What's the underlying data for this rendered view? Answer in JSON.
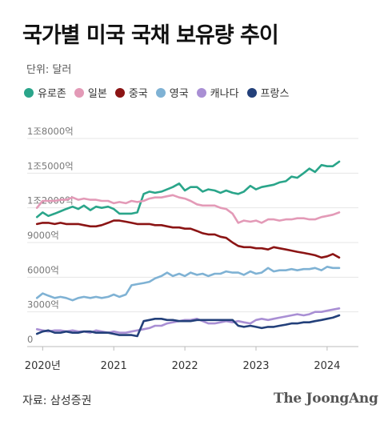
{
  "header": {
    "title": "국가별 미국 국채 보유량 추이",
    "unit": "단위: 달러"
  },
  "footer": {
    "source": "자료: 삼성증권",
    "brand": "The JoongAng"
  },
  "chart_data": {
    "type": "line",
    "title": "국가별 미국 국채 보유량 추이",
    "ylabel": "",
    "xlabel": "",
    "ylim": [
      0,
      18000
    ],
    "xlim": [
      2019.85,
      2024.35
    ],
    "y_ticks": [
      0,
      3000,
      6000,
      9000,
      12000,
      15000,
      18000
    ],
    "y_tick_labels": [
      "0",
      "3000억",
      "6000억",
      "9000억",
      "1조2000억",
      "1조5000억",
      "1조8000억"
    ],
    "x_ticks": [
      2020,
      2021,
      2022,
      2023,
      2024
    ],
    "x_tick_labels": [
      "2020년",
      "2021",
      "2022",
      "2023",
      "2024"
    ],
    "grid": "horizontal",
    "legend_position": "top",
    "series": [
      {
        "name": "유로존",
        "color": "#2aa58a",
        "x": [
          2019.92,
          2020.0,
          2020.08,
          2020.17,
          2020.25,
          2020.33,
          2020.42,
          2020.5,
          2020.58,
          2020.67,
          2020.75,
          2020.83,
          2020.92,
          2021.0,
          2021.08,
          2021.17,
          2021.25,
          2021.33,
          2021.42,
          2021.5,
          2021.58,
          2021.67,
          2021.75,
          2021.83,
          2021.92,
          2022.0,
          2022.08,
          2022.17,
          2022.25,
          2022.33,
          2022.42,
          2022.5,
          2022.58,
          2022.67,
          2022.75,
          2022.83,
          2022.92,
          2023.0,
          2023.08,
          2023.17,
          2023.25,
          2023.33,
          2023.42,
          2023.5,
          2023.58,
          2023.67,
          2023.75,
          2023.83,
          2023.92,
          2024.0,
          2024.08,
          2024.17
        ],
        "values": [
          11200,
          11600,
          11300,
          11500,
          11700,
          11900,
          12100,
          11900,
          12200,
          11800,
          12100,
          12000,
          12100,
          11900,
          11500,
          11500,
          11500,
          11600,
          13200,
          13400,
          13300,
          13400,
          13600,
          13800,
          14100,
          13500,
          13800,
          13800,
          13400,
          13600,
          13500,
          13300,
          13500,
          13300,
          13200,
          13400,
          13900,
          13600,
          13800,
          13900,
          14000,
          14200,
          14300,
          14700,
          14600,
          15000,
          15400,
          15100,
          15700,
          15600,
          15600,
          16000
        ]
      },
      {
        "name": "일본",
        "color": "#e39ab7",
        "x": [
          2019.92,
          2020.0,
          2020.08,
          2020.17,
          2020.25,
          2020.33,
          2020.42,
          2020.5,
          2020.58,
          2020.67,
          2020.75,
          2020.83,
          2020.92,
          2021.0,
          2021.08,
          2021.17,
          2021.25,
          2021.33,
          2021.42,
          2021.5,
          2021.58,
          2021.67,
          2021.75,
          2021.83,
          2021.92,
          2022.0,
          2022.08,
          2022.17,
          2022.25,
          2022.33,
          2022.42,
          2022.5,
          2022.58,
          2022.67,
          2022.75,
          2022.83,
          2022.92,
          2023.0,
          2023.08,
          2023.17,
          2023.25,
          2023.33,
          2023.42,
          2023.5,
          2023.58,
          2023.67,
          2023.75,
          2023.83,
          2023.92,
          2024.0,
          2024.08,
          2024.17
        ],
        "values": [
          12000,
          12600,
          12600,
          12600,
          12700,
          12700,
          12900,
          12700,
          12800,
          12700,
          12700,
          12600,
          12600,
          12400,
          12500,
          12400,
          12600,
          12500,
          12600,
          12800,
          12900,
          12900,
          13000,
          13100,
          12900,
          12800,
          12600,
          12300,
          12200,
          12200,
          12200,
          12000,
          11900,
          11500,
          10700,
          10900,
          10800,
          10900,
          10700,
          11000,
          11000,
          10900,
          11000,
          11000,
          11100,
          11100,
          11000,
          11000,
          11200,
          11300,
          11400,
          11600
        ]
      },
      {
        "name": "중국",
        "color": "#8b1414",
        "x": [
          2019.92,
          2020.0,
          2020.08,
          2020.17,
          2020.25,
          2020.33,
          2020.42,
          2020.5,
          2020.58,
          2020.67,
          2020.75,
          2020.83,
          2020.92,
          2021.0,
          2021.08,
          2021.17,
          2021.25,
          2021.33,
          2021.42,
          2021.5,
          2021.58,
          2021.67,
          2021.75,
          2021.83,
          2021.92,
          2022.0,
          2022.08,
          2022.17,
          2022.25,
          2022.33,
          2022.42,
          2022.5,
          2022.58,
          2022.67,
          2022.75,
          2022.83,
          2022.92,
          2023.0,
          2023.08,
          2023.17,
          2023.25,
          2023.33,
          2023.42,
          2023.5,
          2023.58,
          2023.67,
          2023.75,
          2023.83,
          2023.92,
          2024.0,
          2024.08,
          2024.17
        ],
        "values": [
          10600,
          10700,
          10700,
          10600,
          10700,
          10600,
          10600,
          10600,
          10500,
          10400,
          10400,
          10500,
          10700,
          10900,
          10900,
          10800,
          10700,
          10600,
          10600,
          10600,
          10500,
          10500,
          10400,
          10300,
          10300,
          10200,
          10200,
          10000,
          9800,
          9700,
          9700,
          9500,
          9400,
          9000,
          8700,
          8600,
          8600,
          8500,
          8500,
          8400,
          8600,
          8500,
          8400,
          8300,
          8200,
          8100,
          8000,
          7900,
          7700,
          7800,
          8000,
          7700
        ]
      },
      {
        "name": "영국",
        "color": "#7fb2d4",
        "x": [
          2019.92,
          2020.0,
          2020.08,
          2020.17,
          2020.25,
          2020.33,
          2020.42,
          2020.5,
          2020.58,
          2020.67,
          2020.75,
          2020.83,
          2020.92,
          2021.0,
          2021.08,
          2021.17,
          2021.25,
          2021.33,
          2021.42,
          2021.5,
          2021.58,
          2021.67,
          2021.75,
          2021.83,
          2021.92,
          2022.0,
          2022.08,
          2022.17,
          2022.25,
          2022.33,
          2022.42,
          2022.5,
          2022.58,
          2022.67,
          2022.75,
          2022.83,
          2022.92,
          2023.0,
          2023.08,
          2023.17,
          2023.25,
          2023.33,
          2023.42,
          2023.5,
          2023.58,
          2023.67,
          2023.75,
          2023.83,
          2023.92,
          2024.0,
          2024.08,
          2024.17
        ],
        "values": [
          4200,
          4600,
          4400,
          4200,
          4300,
          4200,
          4000,
          4200,
          4300,
          4200,
          4300,
          4200,
          4300,
          4500,
          4300,
          4500,
          5300,
          5400,
          5500,
          5600,
          5900,
          6100,
          6400,
          6100,
          6300,
          6100,
          6400,
          6200,
          6300,
          6100,
          6300,
          6300,
          6500,
          6400,
          6400,
          6200,
          6500,
          6300,
          6400,
          6800,
          6500,
          6600,
          6600,
          6700,
          6600,
          6700,
          6700,
          6800,
          6600,
          6900,
          6800,
          6800
        ]
      },
      {
        "name": "캐나다",
        "color": "#a98fd4",
        "x": [
          2019.92,
          2020.0,
          2020.08,
          2020.17,
          2020.25,
          2020.33,
          2020.42,
          2020.5,
          2020.58,
          2020.67,
          2020.75,
          2020.83,
          2020.92,
          2021.0,
          2021.08,
          2021.17,
          2021.25,
          2021.33,
          2021.42,
          2021.5,
          2021.58,
          2021.67,
          2021.75,
          2021.83,
          2021.92,
          2022.0,
          2022.08,
          2022.17,
          2022.25,
          2022.33,
          2022.42,
          2022.5,
          2022.58,
          2022.67,
          2022.75,
          2022.83,
          2022.92,
          2023.0,
          2023.08,
          2023.17,
          2023.25,
          2023.33,
          2023.42,
          2023.5,
          2023.58,
          2023.67,
          2023.75,
          2023.83,
          2023.92,
          2024.0,
          2024.08,
          2024.17
        ],
        "values": [
          1500,
          1400,
          1300,
          1400,
          1400,
          1300,
          1400,
          1300,
          1300,
          1200,
          1400,
          1300,
          1200,
          1300,
          1200,
          1200,
          1300,
          1400,
          1500,
          1600,
          1800,
          1800,
          2000,
          2100,
          2200,
          2300,
          2300,
          2400,
          2200,
          2000,
          2000,
          2100,
          2200,
          2100,
          2200,
          2100,
          2000,
          2300,
          2400,
          2300,
          2400,
          2500,
          2600,
          2700,
          2800,
          2700,
          2800,
          3000,
          3000,
          3100,
          3200,
          3300
        ]
      },
      {
        "name": "프랑스",
        "color": "#23407a",
        "x": [
          2019.92,
          2020.0,
          2020.08,
          2020.17,
          2020.25,
          2020.33,
          2020.42,
          2020.5,
          2020.58,
          2020.67,
          2020.75,
          2020.83,
          2020.92,
          2021.0,
          2021.08,
          2021.17,
          2021.25,
          2021.33,
          2021.42,
          2021.5,
          2021.58,
          2021.67,
          2021.75,
          2021.83,
          2021.92,
          2022.0,
          2022.08,
          2022.17,
          2022.25,
          2022.33,
          2022.42,
          2022.5,
          2022.58,
          2022.67,
          2022.75,
          2022.83,
          2022.92,
          2023.0,
          2023.08,
          2023.17,
          2023.25,
          2023.33,
          2023.42,
          2023.5,
          2023.58,
          2023.67,
          2023.75,
          2023.83,
          2023.92,
          2024.0,
          2024.08,
          2024.17
        ],
        "values": [
          1100,
          1300,
          1400,
          1200,
          1200,
          1300,
          1200,
          1200,
          1300,
          1300,
          1200,
          1200,
          1200,
          1100,
          1000,
          1000,
          1000,
          900,
          2200,
          2300,
          2400,
          2400,
          2300,
          2300,
          2200,
          2200,
          2200,
          2300,
          2300,
          2300,
          2300,
          2300,
          2300,
          2300,
          1800,
          1700,
          1800,
          1700,
          1600,
          1700,
          1700,
          1800,
          1900,
          2000,
          2000,
          2100,
          2100,
          2200,
          2300,
          2400,
          2500,
          2700
        ]
      }
    ]
  }
}
